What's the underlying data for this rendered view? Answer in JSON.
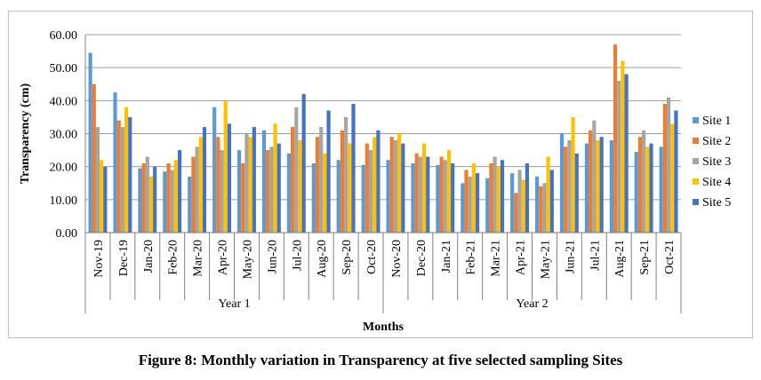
{
  "caption": "Figure 8: Monthly variation in Transparency at five selected sampling Sites",
  "chart_data": {
    "type": "bar",
    "ylabel": "Transparency (cm)",
    "xlabel": "Months",
    "ylim": [
      0,
      60
    ],
    "yticks": [
      "0.00",
      "10.00",
      "20.00",
      "30.00",
      "40.00",
      "50.00",
      "60.00"
    ],
    "grid": true,
    "legend_position": "right",
    "groups": [
      {
        "label": "Year 1",
        "count": 12
      },
      {
        "label": "Year 2",
        "count": 12
      }
    ],
    "categories": [
      "Nov-19",
      "Dec-19",
      "Jan-20",
      "Feb-20",
      "Mar-20",
      "Apr-20",
      "May-20",
      "Jun-20",
      "Jul-20",
      "Aug-20",
      "Sep-20",
      "Oct-20",
      "Nov-20",
      "Dec-20",
      "Jan-21",
      "Feb-21",
      "Mar-21",
      "Apr-21",
      "May-21",
      "Jun-21",
      "Jul-21",
      "Aug-21",
      "Sep-21",
      "Oct-21"
    ],
    "series": [
      {
        "name": "Site 1",
        "color": "#5b9bd5",
        "values": [
          54.5,
          42.5,
          19.5,
          18.5,
          17.0,
          38.0,
          25.0,
          31.0,
          24.0,
          21.0,
          22.0,
          20.5,
          22.0,
          21.0,
          20.5,
          15.0,
          16.5,
          18.0,
          17.0,
          30.0,
          27.0,
          28.0,
          24.5,
          26.0
        ]
      },
      {
        "name": "Site 2",
        "color": "#ed7d31",
        "values": [
          45.0,
          34.0,
          21.0,
          21.0,
          23.0,
          29.0,
          21.0,
          25.0,
          32.0,
          29.0,
          31.0,
          27.0,
          29.0,
          24.0,
          23.0,
          19.0,
          21.0,
          12.0,
          14.0,
          26.0,
          31.0,
          57.0,
          29.0,
          39.0
        ]
      },
      {
        "name": "Site 3",
        "color": "#a5a5a5",
        "values": [
          32.0,
          32.0,
          23.0,
          19.0,
          26.0,
          25.0,
          30.0,
          26.0,
          38.0,
          32.0,
          35.0,
          25.0,
          28.0,
          23.0,
          22.0,
          17.0,
          23.0,
          19.0,
          15.0,
          28.0,
          34.0,
          46.0,
          31.0,
          41.0
        ]
      },
      {
        "name": "Site 4",
        "color": "#ffc000",
        "values": [
          22.0,
          38.0,
          17.0,
          22.0,
          29.0,
          40.0,
          29.0,
          33.0,
          28.0,
          24.0,
          27.0,
          29.0,
          30.0,
          27.0,
          25.0,
          21.0,
          20.0,
          16.0,
          23.0,
          35.0,
          28.0,
          52.0,
          26.0,
          33.0
        ]
      },
      {
        "name": "Site 5",
        "color": "#4472c4",
        "values": [
          20.0,
          35.0,
          20.0,
          25.0,
          32.0,
          33.0,
          32.0,
          27.0,
          42.0,
          37.0,
          39.0,
          31.0,
          27.0,
          23.0,
          21.0,
          18.0,
          22.0,
          21.0,
          19.0,
          24.0,
          29.0,
          48.0,
          27.0,
          37.0
        ]
      }
    ]
  }
}
